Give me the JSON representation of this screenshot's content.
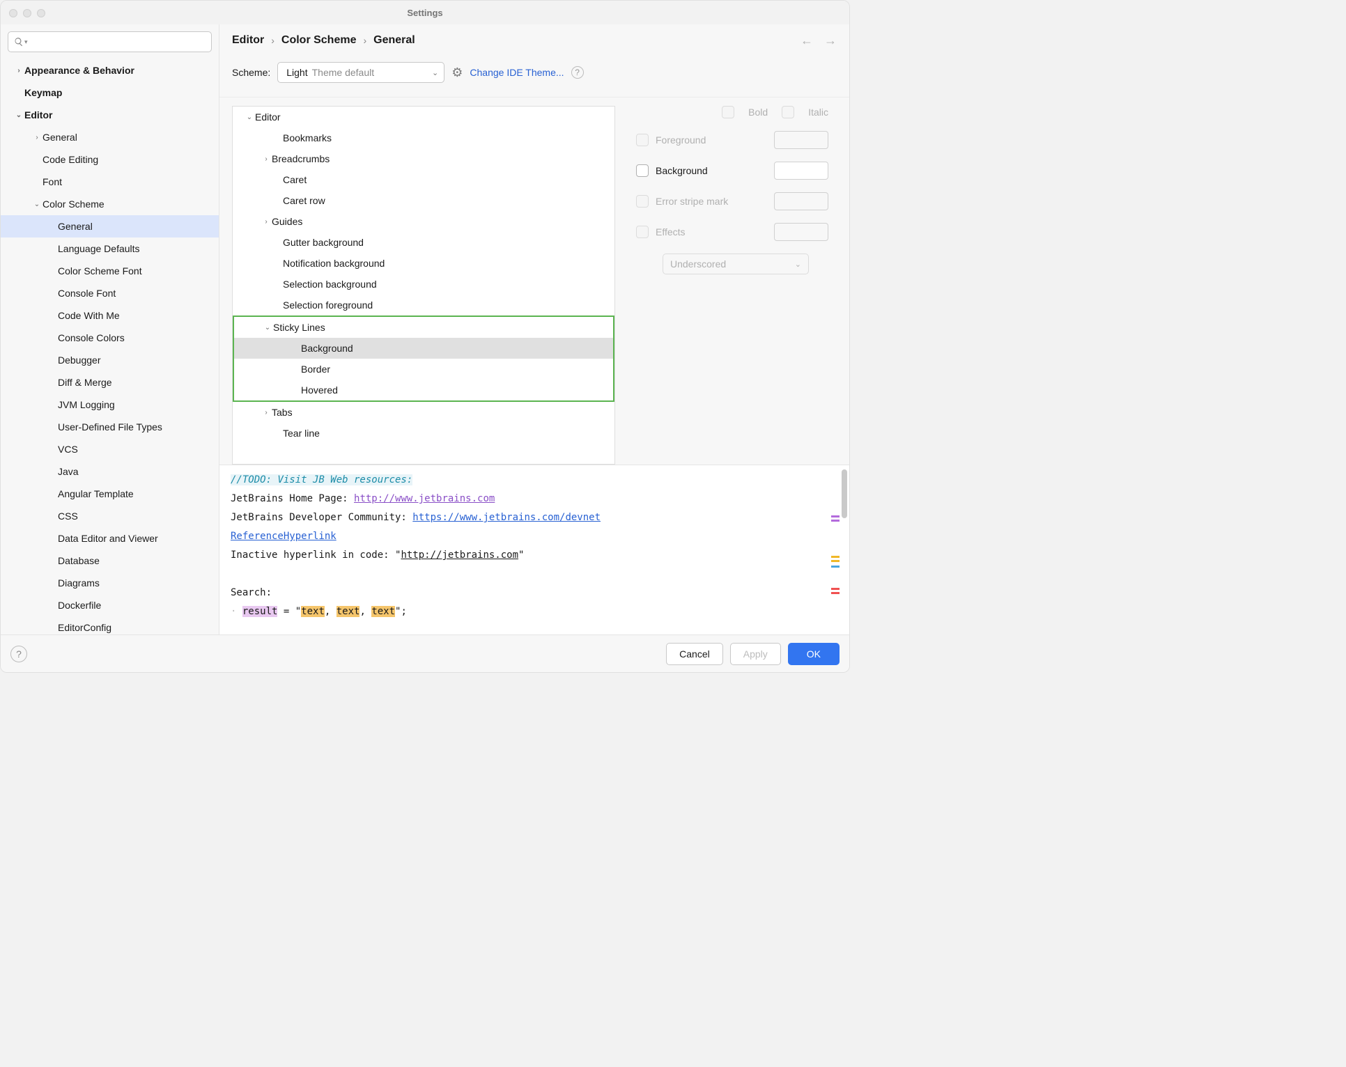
{
  "window": {
    "title": "Settings"
  },
  "breadcrumb": {
    "a": "Editor",
    "b": "Color Scheme",
    "c": "General"
  },
  "scheme": {
    "label": "Scheme:",
    "value": "Light",
    "suffix": "Theme default",
    "change_link": "Change IDE Theme..."
  },
  "sidebar_items": [
    {
      "label": "Appearance & Behavior",
      "indent": 0,
      "bold": true,
      "chev": "right"
    },
    {
      "label": "Keymap",
      "indent": 0,
      "bold": true
    },
    {
      "label": "Editor",
      "indent": 0,
      "bold": true,
      "chev": "down"
    },
    {
      "label": "General",
      "indent": 1,
      "chev": "right"
    },
    {
      "label": "Code Editing",
      "indent": 1
    },
    {
      "label": "Font",
      "indent": 1
    },
    {
      "label": "Color Scheme",
      "indent": 1,
      "chev": "down"
    },
    {
      "label": "General",
      "indent": 2,
      "selected": true
    },
    {
      "label": "Language Defaults",
      "indent": 2
    },
    {
      "label": "Color Scheme Font",
      "indent": 2
    },
    {
      "label": "Console Font",
      "indent": 2
    },
    {
      "label": "Code With Me",
      "indent": 2
    },
    {
      "label": "Console Colors",
      "indent": 2
    },
    {
      "label": "Debugger",
      "indent": 2
    },
    {
      "label": "Diff & Merge",
      "indent": 2
    },
    {
      "label": "JVM Logging",
      "indent": 2
    },
    {
      "label": "User-Defined File Types",
      "indent": 2
    },
    {
      "label": "VCS",
      "indent": 2
    },
    {
      "label": "Java",
      "indent": 2
    },
    {
      "label": "Angular Template",
      "indent": 2
    },
    {
      "label": "CSS",
      "indent": 2
    },
    {
      "label": "Data Editor and Viewer",
      "indent": 2
    },
    {
      "label": "Database",
      "indent": 2
    },
    {
      "label": "Diagrams",
      "indent": 2
    },
    {
      "label": "Dockerfile",
      "indent": 2
    },
    {
      "label": "EditorConfig",
      "indent": 2
    }
  ],
  "attr_items": [
    {
      "label": "Editor",
      "indent": 0,
      "chev": "down"
    },
    {
      "label": "Bookmarks",
      "indent": 2
    },
    {
      "label": "Breadcrumbs",
      "indent": 1,
      "chev": "right"
    },
    {
      "label": "Caret",
      "indent": 2
    },
    {
      "label": "Caret row",
      "indent": 2
    },
    {
      "label": "Guides",
      "indent": 1,
      "chev": "right"
    },
    {
      "label": "Gutter background",
      "indent": 2
    },
    {
      "label": "Notification background",
      "indent": 2
    },
    {
      "label": "Selection background",
      "indent": 2
    },
    {
      "label": "Selection foreground",
      "indent": 2
    },
    {
      "label": "Sticky Lines",
      "indent": 1,
      "chev": "down",
      "hl_start": true
    },
    {
      "label": "Background",
      "indent": 3,
      "selected": true
    },
    {
      "label": "Border",
      "indent": 3
    },
    {
      "label": "Hovered",
      "indent": 3,
      "hl_end": true
    },
    {
      "label": "Tabs",
      "indent": 1,
      "chev": "right"
    },
    {
      "label": "Tear line",
      "indent": 2
    }
  ],
  "props": {
    "bold": "Bold",
    "italic": "Italic",
    "foreground": "Foreground",
    "background": "Background",
    "error_stripe": "Error stripe mark",
    "effects": "Effects",
    "effects_value": "Underscored"
  },
  "preview": {
    "todo": "//TODO: Visit JB Web resources:",
    "l1a": "JetBrains Home Page: ",
    "l1b": "http://www.jetbrains.com",
    "l2a": "JetBrains Developer Community: ",
    "l2b": "https://www.jetbrains.com/devnet",
    "l3": "ReferenceHyperlink",
    "l4a": "Inactive hyperlink in code: \"",
    "l4b": "http://jetbrains.com",
    "l4c": "\"",
    "l5": "Search:",
    "l6_result": "result",
    "l6_mid": " = \"",
    "l6_t1": "text",
    "l6_c1": ", ",
    "l6_t2": "text",
    "l6_c2": ", ",
    "l6_t3": "text",
    "l6_end": "\";"
  },
  "footer": {
    "cancel": "Cancel",
    "apply": "Apply",
    "ok": "OK"
  },
  "colors": {
    "highlight_border": "#5bb450",
    "sel_sidebar": "#dbe5fb",
    "sel_attr": "#e0e0e0",
    "link": "#2861d3",
    "primary_btn": "#3275f0",
    "stripes": [
      "#b36bdc",
      "#b36bdc",
      "#f0b828",
      "#f0b828",
      "#4aa6e0",
      "#f05050",
      "#f05050"
    ]
  }
}
